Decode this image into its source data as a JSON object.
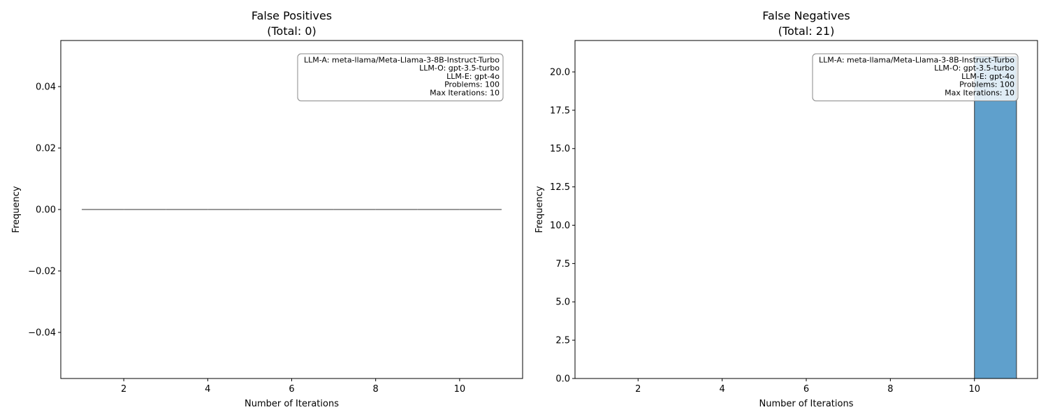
{
  "chart_data": [
    {
      "type": "bar",
      "title": "False Positives\n(Total: 0)",
      "xlabel": "Number of Iterations",
      "ylabel": "Frequency",
      "xlim": [
        0.5,
        11.5
      ],
      "ylim": [
        -0.055,
        0.055
      ],
      "xticks": [
        2,
        4,
        6,
        8,
        10
      ],
      "xtick_labels": [
        "2",
        "4",
        "6",
        "8",
        "10"
      ],
      "yticks": [
        -0.04,
        -0.02,
        0.0,
        0.02,
        0.04
      ],
      "ytick_labels": [
        "−0.04",
        "−0.02",
        "0.00",
        "0.02",
        "0.04"
      ],
      "bins": [
        {
          "x0": 1,
          "x1": 2,
          "value": 0
        },
        {
          "x0": 2,
          "x1": 3,
          "value": 0
        },
        {
          "x0": 3,
          "x1": 4,
          "value": 0
        },
        {
          "x0": 4,
          "x1": 5,
          "value": 0
        },
        {
          "x0": 5,
          "x1": 6,
          "value": 0
        },
        {
          "x0": 6,
          "x1": 7,
          "value": 0
        },
        {
          "x0": 7,
          "x1": 8,
          "value": 0
        },
        {
          "x0": 8,
          "x1": 9,
          "value": 0
        },
        {
          "x0": 9,
          "x1": 10,
          "value": 0
        },
        {
          "x0": 10,
          "x1": 11,
          "value": 0
        }
      ],
      "bar_color": "#5fa0cc",
      "edge_color": "#333333",
      "info_box": [
        "LLM-A: meta-llama/Meta-Llama-3-8B-Instruct-Turbo",
        "LLM-O: gpt-3.5-turbo",
        "LLM-E: gpt-4o",
        "Problems: 100",
        "Max Iterations: 10"
      ],
      "legend_position": "top-right",
      "grid": false
    },
    {
      "type": "bar",
      "title": "False Negatives\n(Total: 21)",
      "xlabel": "Number of Iterations",
      "ylabel": "Frequency",
      "xlim": [
        0.5,
        11.5
      ],
      "ylim": [
        0,
        22.05
      ],
      "xticks": [
        2,
        4,
        6,
        8,
        10
      ],
      "xtick_labels": [
        "2",
        "4",
        "6",
        "8",
        "10"
      ],
      "yticks": [
        0,
        2.5,
        5,
        7.5,
        10,
        12.5,
        15,
        17.5,
        20
      ],
      "ytick_labels": [
        "0.0",
        "2.5",
        "5.0",
        "7.5",
        "10.0",
        "12.5",
        "15.0",
        "17.5",
        "20.0"
      ],
      "bins": [
        {
          "x0": 1,
          "x1": 2,
          "value": 0
        },
        {
          "x0": 2,
          "x1": 3,
          "value": 0
        },
        {
          "x0": 3,
          "x1": 4,
          "value": 0
        },
        {
          "x0": 4,
          "x1": 5,
          "value": 0
        },
        {
          "x0": 5,
          "x1": 6,
          "value": 0
        },
        {
          "x0": 6,
          "x1": 7,
          "value": 0
        },
        {
          "x0": 7,
          "x1": 8,
          "value": 0
        },
        {
          "x0": 8,
          "x1": 9,
          "value": 0
        },
        {
          "x0": 9,
          "x1": 10,
          "value": 0
        },
        {
          "x0": 10,
          "x1": 11,
          "value": 21
        }
      ],
      "bar_color": "#5fa0cc",
      "edge_color": "#333333",
      "info_box": [
        "LLM-A: meta-llama/Meta-Llama-3-8B-Instruct-Turbo",
        "LLM-O: gpt-3.5-turbo",
        "LLM-E: gpt-4o",
        "Problems: 100",
        "Max Iterations: 10"
      ],
      "legend_position": "top-right",
      "grid": false
    }
  ]
}
